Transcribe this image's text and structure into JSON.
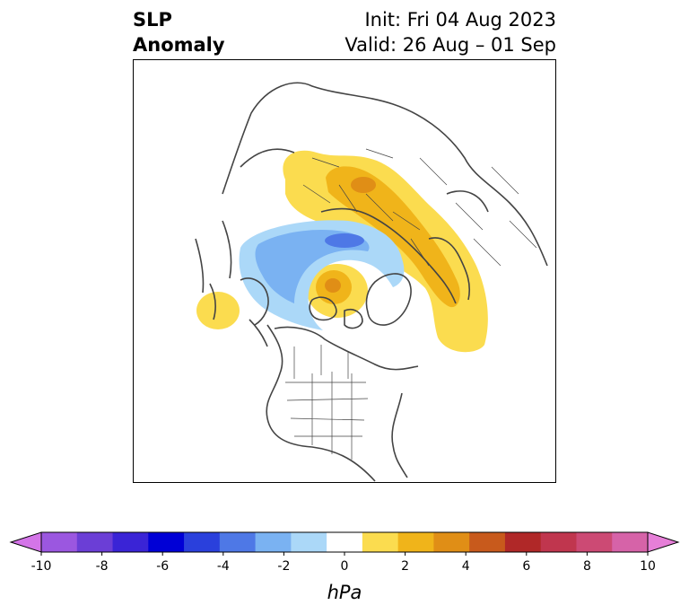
{
  "title": {
    "line1": "SLP",
    "line2": "Anomaly"
  },
  "init_text": "Init: Fri 04 Aug 2023",
  "valid_text": "Valid: 26 Aug – 01 Sep",
  "colorbar": {
    "unit_label": "hPa",
    "tick_labels": [
      "-10",
      "-8",
      "-6",
      "-4",
      "-2",
      "0",
      "2",
      "4",
      "6",
      "8",
      "10"
    ],
    "colors": [
      "#d475e8",
      "#9b57e0",
      "#6b3ed6",
      "#3a24d6",
      "#0000d6",
      "#2a40dc",
      "#4e78e6",
      "#7ab2f2",
      "#abd8f8",
      "#ffffff",
      "#fbdc4f",
      "#f0b41a",
      "#e08e16",
      "#c85a1c",
      "#b02828",
      "#c0364e",
      "#cc4a74",
      "#d663a8",
      "#e67fd8"
    ]
  },
  "map_layers": {
    "high_pressure_color": "#fbdc4f",
    "high_pressure_core_color": "#f0b41a",
    "high_pressure_center_color": "#e08e16",
    "low_pressure_color": "#abd8f8",
    "low_pressure_core_color": "#7ab2f2",
    "low_pressure_center_color": "#4e78e6",
    "coastline_color": "#444444"
  }
}
